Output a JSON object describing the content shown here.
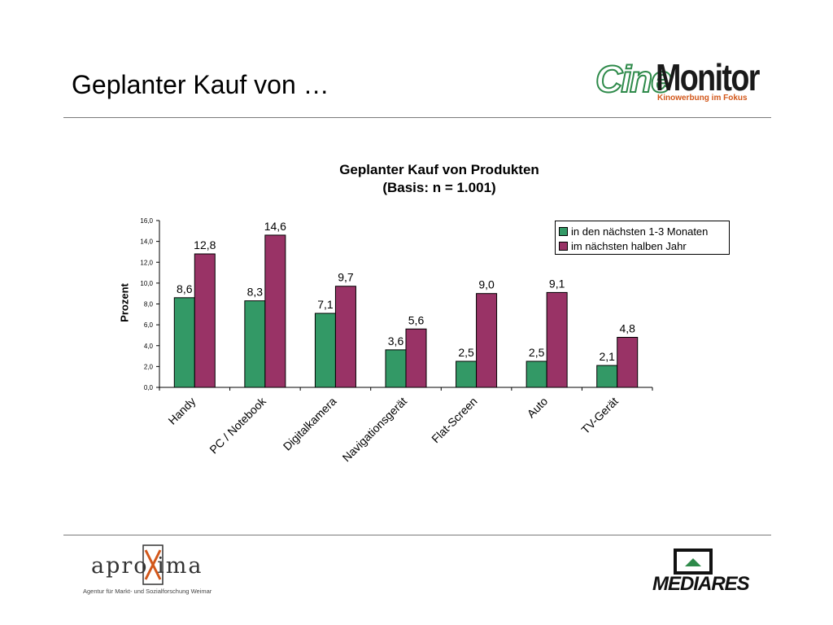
{
  "slide": {
    "title": "Geplanter Kauf von …"
  },
  "logos": {
    "cinemonitor": {
      "cine": "Cine",
      "monitor": "Monitor",
      "tagline": "Kinowerbung im Fokus"
    },
    "aproxima": {
      "word": "apro ima",
      "tagline": "Agentur für Markt- und Sozialforschung Weimar"
    },
    "mediares": {
      "word": "MEDIARES"
    }
  },
  "chart_data": {
    "type": "bar",
    "title_line1": "Geplanter Kauf von Produkten",
    "title_line2": "(Basis: n = 1.001)",
    "xlabel": "",
    "ylabel": "Prozent",
    "ylim": [
      0,
      16
    ],
    "yticks": [
      "0,0",
      "2,0",
      "4,0",
      "6,0",
      "8,0",
      "10,0",
      "12,0",
      "14,0",
      "16,0"
    ],
    "categories": [
      "Handy",
      "PC / Notebook",
      "Digitalkamera",
      "Navigationsgerät",
      "Flat-Screen",
      "Auto",
      "TV-Gerät"
    ],
    "series": [
      {
        "name": "in den nächsten 1-3 Monaten",
        "color": "#339966",
        "values": [
          8.6,
          8.3,
          7.1,
          3.6,
          2.5,
          2.5,
          2.1
        ],
        "labels": [
          "8,6",
          "8,3",
          "7,1",
          "3,6",
          "2,5",
          "2,5",
          "2,1"
        ]
      },
      {
        "name": "im nächsten halben Jahr",
        "color": "#993366",
        "values": [
          12.8,
          14.6,
          9.7,
          5.6,
          9.0,
          9.1,
          4.8
        ],
        "labels": [
          "12,8",
          "14,6",
          "9,7",
          "5,6",
          "9,0",
          "9,1",
          "4,8"
        ]
      }
    ],
    "grid": false,
    "legend_position": "top-right"
  }
}
